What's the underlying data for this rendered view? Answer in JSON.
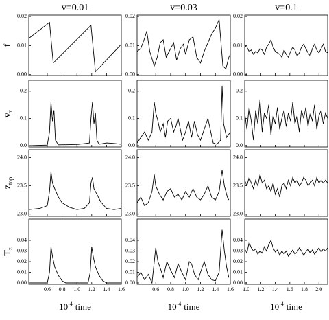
{
  "chart_data": [
    {
      "type": "line",
      "title": "v=0.01",
      "ylabel": "f",
      "color": "#000000",
      "x": [
        0.35,
        0.63,
        0.68,
        1.19,
        1.25,
        1.6
      ],
      "values": [
        0.0125,
        0.018,
        0.004,
        0.017,
        0.001,
        0.0105
      ],
      "xlim": [
        0.35,
        1.6
      ],
      "ylim": [
        -0.0003,
        0.0205
      ],
      "yticks": [
        {
          "value": 0,
          "label": "0.00"
        },
        0.01,
        0.02
      ]
    },
    {
      "type": "line",
      "title": "v=0.03",
      "color": "#000000",
      "x": [
        0.35,
        0.4,
        0.45,
        0.48,
        0.52,
        0.58,
        0.62,
        0.66,
        0.7,
        0.74,
        0.8,
        0.84,
        0.88,
        0.93,
        0.97,
        1.0,
        1.05,
        1.1,
        1.15,
        1.2,
        1.25,
        1.3,
        1.35,
        1.4,
        1.45,
        1.5,
        1.54,
        1.58,
        1.6
      ],
      "values": [
        0.008,
        0.009,
        0.0125,
        0.015,
        0.008,
        0.003,
        0.006,
        0.011,
        0.012,
        0.006,
        0.009,
        0.011,
        0.005,
        0.009,
        0.0105,
        0.007,
        0.012,
        0.013,
        0.006,
        0.004,
        0.008,
        0.011,
        0.014,
        0.016,
        0.019,
        0.003,
        0.002,
        0.006,
        0.007
      ],
      "xlim": [
        0.35,
        1.6
      ],
      "ylim": [
        -0.0003,
        0.0205
      ],
      "yticks": [
        {
          "value": 0,
          "label": "0.00"
        },
        0.01,
        0.02
      ]
    },
    {
      "type": "line",
      "title": "v=0.1",
      "color": "#000000",
      "x": [
        0.98,
        1.01,
        1.04,
        1.07,
        1.1,
        1.13,
        1.16,
        1.19,
        1.22,
        1.25,
        1.28,
        1.31,
        1.34,
        1.37,
        1.4,
        1.43,
        1.46,
        1.49,
        1.52,
        1.55,
        1.58,
        1.61,
        1.64,
        1.67,
        1.7,
        1.73,
        1.76,
        1.79,
        1.82,
        1.85,
        1.88,
        1.91,
        1.94,
        1.97,
        2.0,
        2.03,
        2.06,
        2.09,
        2.12
      ],
      "values": [
        0.01,
        0.0095,
        0.008,
        0.0085,
        0.007,
        0.008,
        0.0075,
        0.009,
        0.0085,
        0.007,
        0.0095,
        0.0105,
        0.012,
        0.0095,
        0.008,
        0.0075,
        0.007,
        0.006,
        0.0085,
        0.007,
        0.006,
        0.008,
        0.0095,
        0.0085,
        0.0065,
        0.0075,
        0.0095,
        0.0105,
        0.009,
        0.0075,
        0.0065,
        0.009,
        0.0105,
        0.0085,
        0.0075,
        0.009,
        0.0105,
        0.008,
        0.0075
      ],
      "xlim": [
        0.98,
        2.12
      ],
      "ylim": [
        -0.0003,
        0.0205
      ],
      "yticks": [
        {
          "value": 0,
          "label": "0.00"
        },
        0.01,
        0.02
      ]
    },
    {
      "type": "line",
      "ylabel": "v",
      "ylabel_subscript": "x",
      "color": "#000000",
      "x": [
        0.35,
        0.6,
        0.63,
        0.65,
        0.67,
        0.69,
        0.71,
        0.75,
        1.0,
        1.17,
        1.19,
        1.21,
        1.23,
        1.25,
        1.27,
        1.3,
        1.4,
        1.5,
        1.6
      ],
      "values": [
        0,
        0.002,
        0.05,
        0.16,
        0.09,
        0.13,
        0.02,
        0.003,
        0.004,
        0.01,
        0.1,
        0.16,
        0.08,
        0.12,
        0.02,
        0.005,
        0.01,
        0.008,
        0.005
      ],
      "xlim": [
        0.35,
        1.6
      ],
      "ylim": [
        -0.005,
        0.24
      ],
      "yticks": [
        {
          "value": 0,
          "label": "0.0"
        },
        0.1,
        0.2
      ]
    },
    {
      "type": "line",
      "color": "#000000",
      "x": [
        0.35,
        0.4,
        0.45,
        0.5,
        0.55,
        0.58,
        0.6,
        0.63,
        0.66,
        0.7,
        0.73,
        0.76,
        0.8,
        0.84,
        0.87,
        0.9,
        0.93,
        0.96,
        1.0,
        1.04,
        1.08,
        1.12,
        1.16,
        1.2,
        1.25,
        1.3,
        1.33,
        1.37,
        1.42,
        1.47,
        1.49,
        1.51,
        1.55,
        1.6
      ],
      "values": [
        0.01,
        0.03,
        0.05,
        0.02,
        0.05,
        0.16,
        0.12,
        0.09,
        0.05,
        0.08,
        0.03,
        0.09,
        0.1,
        0.05,
        0.07,
        0.1,
        0.06,
        0.02,
        0.05,
        0.09,
        0.03,
        0.09,
        0.04,
        0.02,
        0.06,
        0.1,
        0.06,
        0.01,
        0.005,
        0.02,
        0.22,
        0.08,
        0.03,
        0.05
      ],
      "xlim": [
        0.35,
        1.6
      ],
      "ylim": [
        -0.005,
        0.24
      ],
      "yticks": [
        {
          "value": 0,
          "label": "0.0"
        },
        0.1,
        0.2
      ]
    },
    {
      "type": "line",
      "color": "#000000",
      "x": [
        0.98,
        1.01,
        1.04,
        1.07,
        1.1,
        1.13,
        1.16,
        1.19,
        1.22,
        1.25,
        1.28,
        1.31,
        1.34,
        1.37,
        1.4,
        1.43,
        1.46,
        1.49,
        1.52,
        1.55,
        1.58,
        1.61,
        1.64,
        1.67,
        1.7,
        1.73,
        1.76,
        1.79,
        1.82,
        1.85,
        1.88,
        1.91,
        1.94,
        1.97,
        2.0,
        2.03,
        2.06,
        2.09,
        2.12
      ],
      "values": [
        0.12,
        0.06,
        0.14,
        0.09,
        0.02,
        0.13,
        0.08,
        0.17,
        0.05,
        0.12,
        0.1,
        0.15,
        0.04,
        0.11,
        0.08,
        0.14,
        0.06,
        0.1,
        0.13,
        0.07,
        0.12,
        0.09,
        0.16,
        0.08,
        0.11,
        0.05,
        0.13,
        0.1,
        0.14,
        0.07,
        0.12,
        0.09,
        0.15,
        0.06,
        0.11,
        0.13,
        0.08,
        0.12,
        0.1
      ],
      "xlim": [
        0.98,
        2.12
      ],
      "ylim": [
        -0.005,
        0.24
      ],
      "yticks": [
        {
          "value": 0,
          "label": "0.0"
        },
        0.1,
        0.2
      ]
    },
    {
      "type": "line",
      "ylabel": "z",
      "ylabel_subscript": "top",
      "color": "#000000",
      "x": [
        0.35,
        0.5,
        0.6,
        0.63,
        0.65,
        0.67,
        0.7,
        0.75,
        0.8,
        0.9,
        1.0,
        1.1,
        1.17,
        1.19,
        1.21,
        1.23,
        1.27,
        1.32,
        1.4,
        1.5,
        1.6
      ],
      "values": [
        23.08,
        23.1,
        23.15,
        23.4,
        23.75,
        23.55,
        23.45,
        23.3,
        23.2,
        23.12,
        23.08,
        23.1,
        23.2,
        23.55,
        23.65,
        23.45,
        23.35,
        23.22,
        23.1,
        23.08,
        23.1
      ],
      "xlim": [
        0.35,
        1.6
      ],
      "ylim": [
        22.96,
        24.14
      ],
      "yticks": [
        {
          "value": 23,
          "label": "23.0"
        },
        23.5,
        {
          "value": 24,
          "label": "24.0"
        }
      ]
    },
    {
      "type": "line",
      "color": "#000000",
      "x": [
        0.35,
        0.4,
        0.45,
        0.5,
        0.55,
        0.58,
        0.6,
        0.65,
        0.7,
        0.75,
        0.8,
        0.85,
        0.9,
        0.95,
        1.0,
        1.05,
        1.1,
        1.15,
        1.2,
        1.25,
        1.3,
        1.35,
        1.4,
        1.45,
        1.49,
        1.52,
        1.56,
        1.58
      ],
      "values": [
        23.2,
        23.3,
        23.15,
        23.2,
        23.4,
        23.7,
        23.5,
        23.35,
        23.25,
        23.4,
        23.45,
        23.3,
        23.35,
        23.25,
        23.4,
        23.3,
        23.45,
        23.3,
        23.25,
        23.35,
        23.5,
        23.3,
        23.25,
        23.4,
        23.78,
        23.5,
        23.3,
        23.25
      ],
      "xlim": [
        0.35,
        1.6
      ],
      "ylim": [
        22.96,
        24.14
      ],
      "yticks": [
        {
          "value": 23,
          "label": "23.0"
        },
        23.5,
        {
          "value": 24,
          "label": "24.0"
        }
      ]
    },
    {
      "type": "line",
      "color": "#000000",
      "x": [
        0.98,
        1.01,
        1.04,
        1.07,
        1.1,
        1.13,
        1.16,
        1.19,
        1.22,
        1.25,
        1.28,
        1.31,
        1.34,
        1.37,
        1.4,
        1.43,
        1.46,
        1.49,
        1.52,
        1.55,
        1.58,
        1.61,
        1.64,
        1.67,
        1.7,
        1.73,
        1.76,
        1.79,
        1.82,
        1.85,
        1.88,
        1.91,
        1.94,
        1.97,
        2.0,
        2.03,
        2.06,
        2.09,
        2.12
      ],
      "values": [
        23.6,
        23.5,
        23.65,
        23.55,
        23.45,
        23.6,
        23.5,
        23.7,
        23.55,
        23.6,
        23.45,
        23.5,
        23.4,
        23.55,
        23.35,
        23.45,
        23.3,
        23.5,
        23.55,
        23.45,
        23.6,
        23.5,
        23.65,
        23.55,
        23.6,
        23.5,
        23.55,
        23.65,
        23.6,
        23.5,
        23.55,
        23.6,
        23.5,
        23.65,
        23.55,
        23.6,
        23.55,
        23.6,
        23.55
      ],
      "xlim": [
        0.98,
        2.12
      ],
      "ylim": [
        22.96,
        24.14
      ],
      "yticks": [
        {
          "value": 23,
          "label": "23.0"
        },
        23.5,
        {
          "value": 24,
          "label": "24.0"
        }
      ]
    },
    {
      "type": "line",
      "ylabel": "T",
      "ylabel_subscript": "z",
      "xlabel_base": "10",
      "xlabel_exponent": "-4",
      "xlabel": "time",
      "color": "#000000",
      "x": [
        0.35,
        0.6,
        0.63,
        0.65,
        0.67,
        0.7,
        0.75,
        0.8,
        0.85,
        1.15,
        1.18,
        1.2,
        1.22,
        1.25,
        1.3,
        1.35,
        1.4,
        1.6
      ],
      "values": [
        0,
        0,
        0.01,
        0.034,
        0.025,
        0.015,
        0.007,
        0.002,
        0,
        0,
        0.01,
        0.034,
        0.025,
        0.015,
        0.007,
        0.002,
        0,
        0
      ],
      "xlim": [
        0.35,
        1.6
      ],
      "ylim": [
        -0.0013,
        0.06
      ],
      "yticks": [
        {
          "value": 0,
          "label": "0.00"
        },
        0.01,
        0.02,
        0.03,
        0.04
      ],
      "xticks": [
        0.6,
        0.8,
        {
          "value": 1,
          "label": "1.0"
        },
        1.2,
        1.4,
        1.6
      ]
    },
    {
      "type": "line",
      "xlabel_base": "10",
      "xlabel_exponent": "-4",
      "xlabel": "time",
      "color": "#000000",
      "x": [
        0.35,
        0.4,
        0.45,
        0.5,
        0.55,
        0.6,
        0.63,
        0.67,
        0.7,
        0.75,
        0.8,
        0.85,
        0.9,
        0.95,
        1.0,
        1.05,
        1.08,
        1.12,
        1.17,
        1.2,
        1.25,
        1.3,
        1.35,
        1.4,
        1.45,
        1.49,
        1.52,
        1.55,
        1.58
      ],
      "values": [
        0.005,
        0.01,
        0.003,
        0.008,
        0,
        0.033,
        0.02,
        0.012,
        0.005,
        0.02,
        0.012,
        0.005,
        0.018,
        0.01,
        0.003,
        0.02,
        0.018,
        0.008,
        0.003,
        0.01,
        0.02,
        0.008,
        0.003,
        0.002,
        0.01,
        0.05,
        0.03,
        0.015,
        0.005
      ],
      "xlim": [
        0.35,
        1.6
      ],
      "ylim": [
        -0.0013,
        0.06
      ],
      "yticks": [
        {
          "value": 0,
          "label": "0.00"
        },
        0.01,
        0.02,
        0.03,
        0.04
      ],
      "xticks": [
        0.6,
        0.8,
        {
          "value": 1,
          "label": "1.0"
        },
        1.2,
        1.4,
        1.6
      ]
    },
    {
      "type": "line",
      "xlabel_base": "10",
      "xlabel_exponent": "-4",
      "xlabel": "time",
      "color": "#000000",
      "x": [
        0.98,
        1.01,
        1.04,
        1.07,
        1.1,
        1.13,
        1.16,
        1.19,
        1.22,
        1.25,
        1.28,
        1.31,
        1.34,
        1.37,
        1.4,
        1.43,
        1.46,
        1.49,
        1.52,
        1.55,
        1.58,
        1.61,
        1.64,
        1.67,
        1.7,
        1.73,
        1.76,
        1.79,
        1.82,
        1.85,
        1.88,
        1.91,
        1.94,
        1.97,
        2.0,
        2.03,
        2.06,
        2.09,
        2.12
      ],
      "values": [
        0.032,
        0.028,
        0.038,
        0.033,
        0.03,
        0.032,
        0.027,
        0.03,
        0.028,
        0.034,
        0.03,
        0.036,
        0.04,
        0.033,
        0.029,
        0.031,
        0.026,
        0.03,
        0.027,
        0.03,
        0.025,
        0.028,
        0.031,
        0.027,
        0.029,
        0.033,
        0.03,
        0.026,
        0.029,
        0.032,
        0.028,
        0.031,
        0.027,
        0.03,
        0.033,
        0.029,
        0.032,
        0.03,
        0.033
      ],
      "xlim": [
        0.98,
        2.12
      ],
      "ylim": [
        -0.0013,
        0.06
      ],
      "yticks": [
        {
          "value": 0,
          "label": "0.00"
        },
        0.01,
        0.02,
        0.03,
        0.04
      ],
      "xticks": [
        {
          "value": 1,
          "label": "1.0"
        },
        1.2,
        1.4,
        1.6,
        1.8,
        {
          "value": 2,
          "label": "2.0"
        }
      ]
    }
  ]
}
